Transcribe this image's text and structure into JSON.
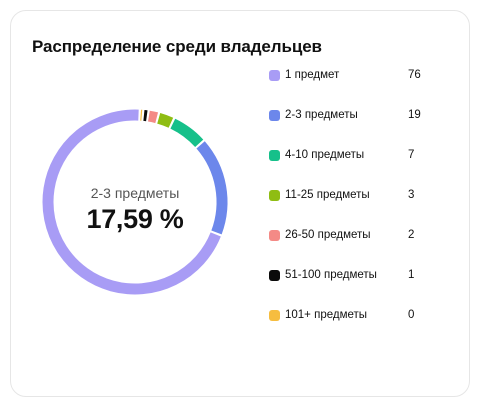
{
  "chart_data": {
    "type": "pie",
    "title": "Распределение среди владельцев",
    "center": {
      "label": "2-3 предметы",
      "value": "17,59 %"
    },
    "categories": [
      "1 предмет",
      "2-3 предметы",
      "4-10 предметы",
      "11-25 предметы",
      "26-50 предметы",
      "51-100 предметы",
      "101+ предметы"
    ],
    "values": [
      76,
      19,
      7,
      3,
      2,
      1,
      0
    ],
    "colors": [
      "#a89cf5",
      "#6c87eb",
      "#16c08a",
      "#8fbd13",
      "#f48a86",
      "#0b0b0b",
      "#f6bd3f"
    ],
    "legend_position": "right"
  }
}
